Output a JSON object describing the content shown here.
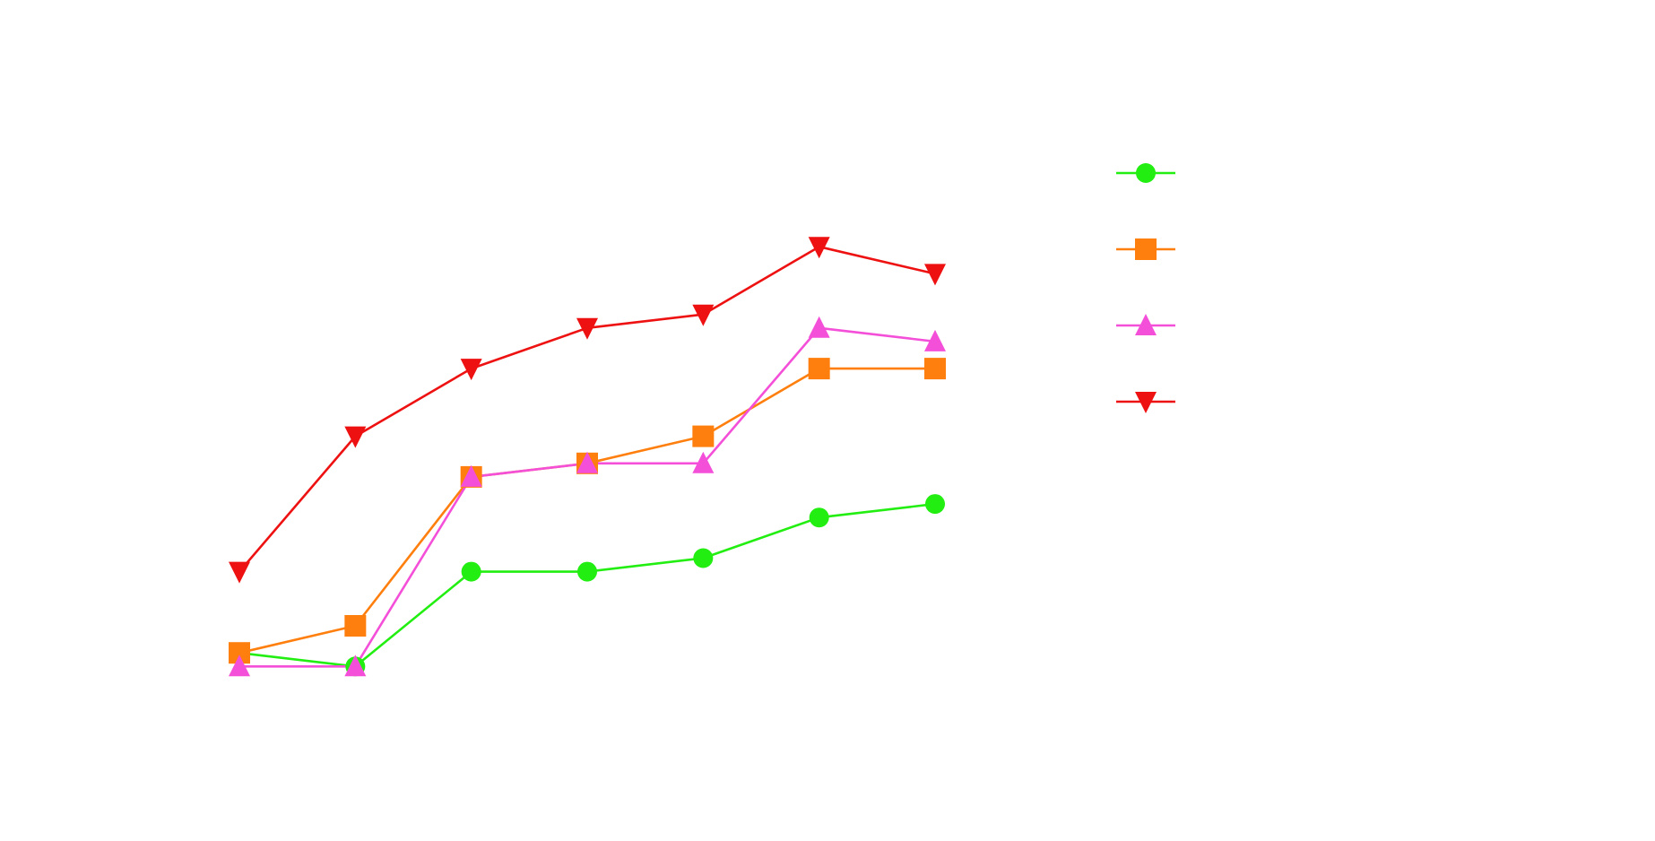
{
  "chart_data": {
    "type": "line",
    "title": "",
    "xlabel": "",
    "ylabel": "",
    "x": [
      1,
      2,
      3,
      4,
      5,
      6,
      7
    ],
    "xlim": [
      0.5,
      7.5
    ],
    "ylim": [
      0,
      10
    ],
    "grid": false,
    "legend": {
      "placement": "right",
      "entries": [
        {
          "marker": "circle"
        },
        {
          "marker": "square"
        },
        {
          "marker": "triangle-up"
        },
        {
          "marker": "triangle-down"
        }
      ]
    },
    "series": [
      {
        "color": "#22ee11",
        "marker": "circle",
        "values": [
          1.6,
          1.4,
          2.8,
          2.8,
          3.0,
          3.6,
          3.8
        ]
      },
      {
        "color": "#ff7f0e",
        "marker": "square",
        "values": [
          1.6,
          2.0,
          4.2,
          4.4,
          4.8,
          5.8,
          5.8
        ]
      },
      {
        "color": "#f44fd8",
        "marker": "triangle-up",
        "values": [
          1.4,
          1.4,
          4.2,
          4.4,
          4.4,
          6.4,
          6.2
        ]
      },
      {
        "color": "#ee1111",
        "marker": "triangle-down",
        "values": [
          2.8,
          4.8,
          5.8,
          6.4,
          6.6,
          7.6,
          7.2
        ]
      }
    ]
  }
}
